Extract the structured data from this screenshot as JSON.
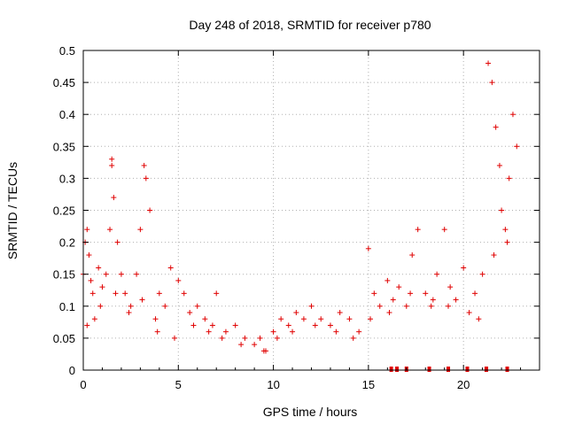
{
  "chart_data": {
    "type": "scatter",
    "title": "Day 248 of 2018, SRMTID for receiver p780",
    "xlabel": "GPS time / hours",
    "ylabel": "SRMTID / TECUs",
    "xlim": [
      0,
      24
    ],
    "ylim": [
      0,
      0.5
    ],
    "xticks": [
      0,
      5,
      10,
      15,
      20
    ],
    "yticks": [
      0,
      0.05,
      0.1,
      0.15,
      0.2,
      0.25,
      0.3,
      0.35,
      0.4,
      0.45,
      0.5
    ],
    "xtick_labels": [
      "0",
      "5",
      "10",
      "15",
      "20"
    ],
    "ytick_labels": [
      "0",
      "0.05",
      "0.1",
      "0.15",
      "0.2",
      "0.25",
      "0.3",
      "0.35",
      "0.4",
      "0.45",
      "0.5"
    ],
    "grid": true,
    "marker": "+",
    "color": "#e00000",
    "series": [
      {
        "name": "SRMTID",
        "x": [
          0.0,
          0.1,
          0.2,
          0.3,
          0.4,
          0.5,
          0.6,
          0.8,
          1.0,
          1.2,
          1.4,
          1.5,
          1.5,
          1.6,
          1.8,
          2.0,
          2.2,
          2.5,
          2.8,
          3.0,
          3.2,
          3.3,
          3.5,
          3.8,
          4.0,
          4.3,
          4.6,
          5.0,
          5.3,
          5.6,
          6.0,
          6.4,
          6.8,
          7.0,
          7.5,
          8.0,
          8.5,
          9.0,
          9.3,
          9.6,
          10.0,
          10.4,
          10.8,
          11.2,
          11.6,
          12.0,
          12.5,
          13.0,
          13.5,
          14.0,
          14.5,
          15.0,
          15.3,
          15.6,
          16.0,
          16.3,
          16.6,
          17.0,
          17.3,
          17.6,
          18.0,
          18.3,
          18.6,
          19.0,
          19.3,
          19.6,
          20.0,
          20.3,
          20.6,
          21.0,
          21.3,
          21.5,
          21.7,
          21.9,
          22.0,
          22.2,
          22.4,
          22.6,
          22.8,
          0.2,
          0.9,
          1.7,
          2.4,
          3.1,
          3.9,
          4.8,
          5.8,
          6.6,
          7.3,
          8.3,
          9.5,
          10.2,
          11.0,
          12.2,
          13.3,
          14.2,
          15.1,
          16.1,
          17.2,
          18.4,
          19.2,
          20.8,
          21.6,
          22.3
        ],
        "y": [
          0.15,
          0.2,
          0.22,
          0.18,
          0.14,
          0.12,
          0.08,
          0.16,
          0.13,
          0.15,
          0.22,
          0.33,
          0.32,
          0.27,
          0.2,
          0.15,
          0.12,
          0.1,
          0.15,
          0.22,
          0.32,
          0.3,
          0.25,
          0.08,
          0.12,
          0.1,
          0.16,
          0.14,
          0.12,
          0.09,
          0.1,
          0.08,
          0.07,
          0.12,
          0.06,
          0.07,
          0.05,
          0.04,
          0.05,
          0.03,
          0.06,
          0.08,
          0.07,
          0.09,
          0.08,
          0.1,
          0.08,
          0.07,
          0.09,
          0.08,
          0.06,
          0.19,
          0.12,
          0.1,
          0.14,
          0.11,
          0.13,
          0.1,
          0.18,
          0.22,
          0.12,
          0.1,
          0.15,
          0.22,
          0.13,
          0.11,
          0.16,
          0.09,
          0.12,
          0.15,
          0.48,
          0.45,
          0.38,
          0.32,
          0.25,
          0.22,
          0.3,
          0.4,
          0.35,
          0.07,
          0.1,
          0.12,
          0.09,
          0.11,
          0.06,
          0.05,
          0.07,
          0.06,
          0.05,
          0.04,
          0.03,
          0.05,
          0.06,
          0.07,
          0.06,
          0.05,
          0.08,
          0.09,
          0.12,
          0.11,
          0.1,
          0.08,
          0.18,
          0.2
        ]
      }
    ],
    "baseline_marks_x": [
      16.2,
      16.5,
      17.0,
      18.2,
      19.2,
      20.2,
      21.2,
      22.3
    ]
  }
}
